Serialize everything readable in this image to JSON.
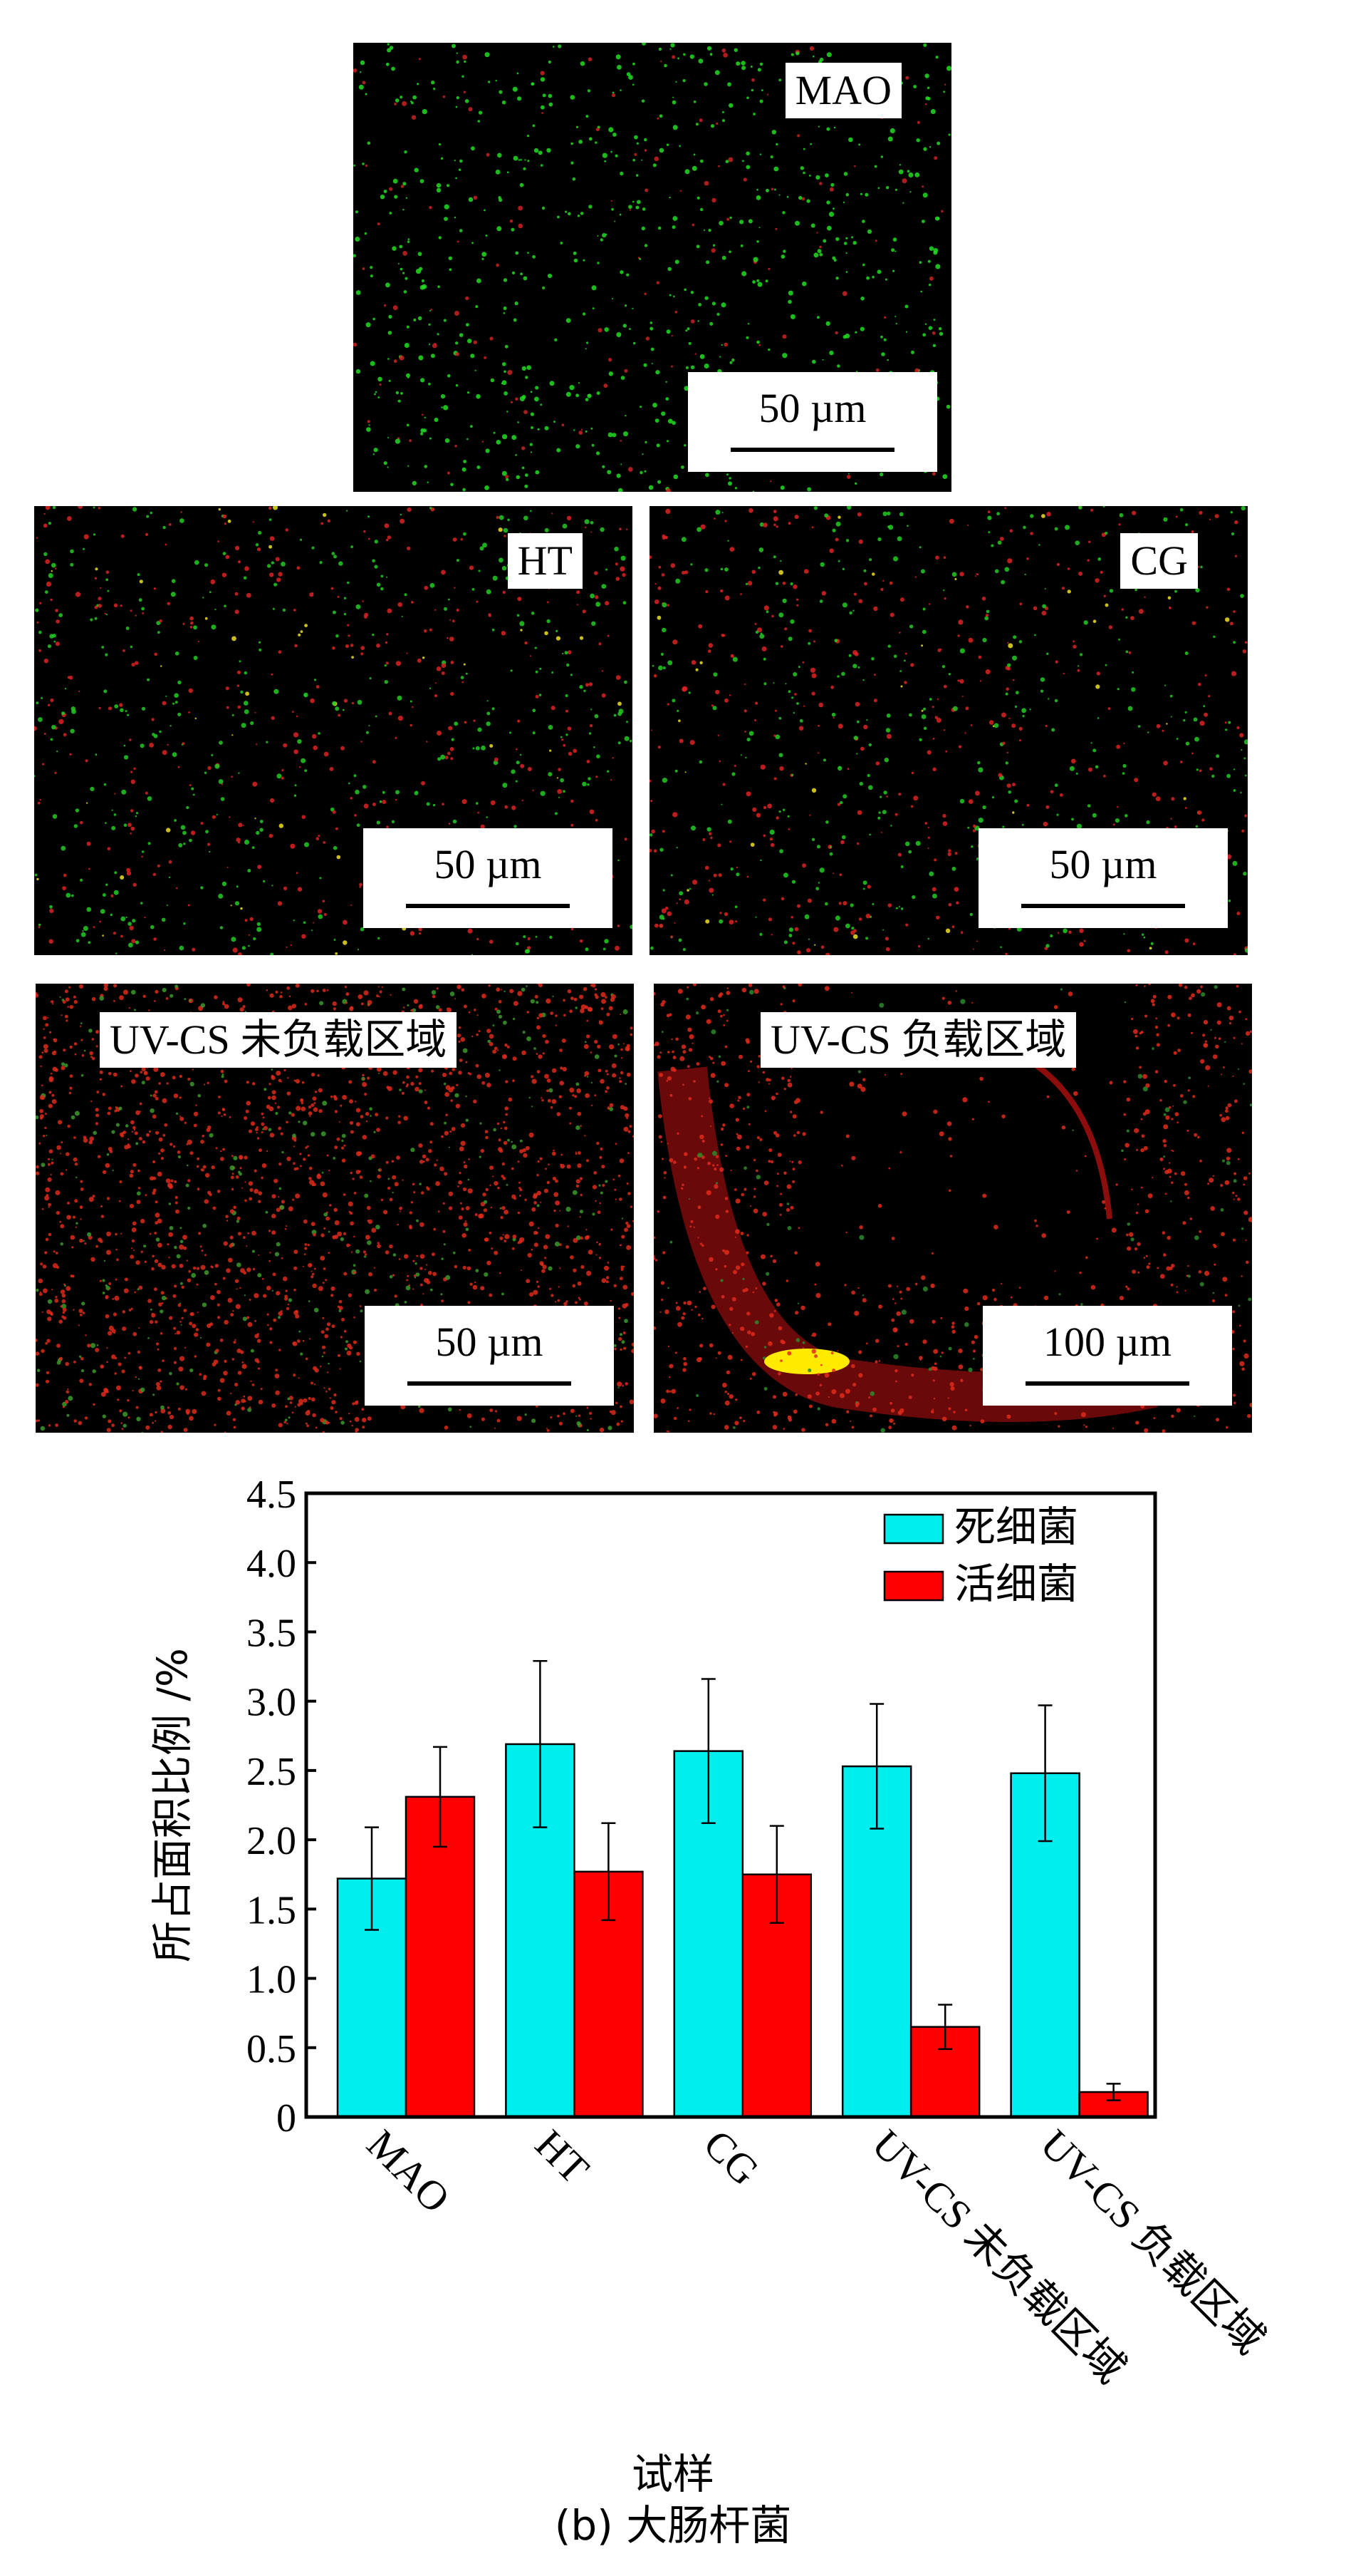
{
  "panels": {
    "mao": {
      "label": "MAO",
      "scale": "50 µm"
    },
    "ht": {
      "label": "HT",
      "scale": "50 µm"
    },
    "cg": {
      "label": "CG",
      "scale": "50 µm"
    },
    "unloaded": {
      "label": "UV-CS 未负载区域",
      "scale": "50 µm"
    },
    "loaded": {
      "label": "UV-CS 负载区域",
      "scale": "100 µm"
    }
  },
  "chart_data": {
    "type": "bar",
    "categories": [
      "MAO",
      "HT",
      "CG",
      "UV-CS 未负载区域",
      "UV-CS 负载区域"
    ],
    "series": [
      {
        "name": "死细菌",
        "color": "#00eeee",
        "values": [
          1.72,
          2.69,
          2.64,
          2.53,
          2.48
        ],
        "errors": [
          0.37,
          0.6,
          0.52,
          0.45,
          0.49
        ]
      },
      {
        "name": "活细菌",
        "color": "#ff0000",
        "values": [
          2.31,
          1.77,
          1.75,
          0.65,
          0.18
        ],
        "errors": [
          0.36,
          0.35,
          0.35,
          0.16,
          0.06
        ]
      }
    ],
    "ylabel": "所占面积比例 /%",
    "xlabel": "试样",
    "ylim": [
      0,
      4.5
    ],
    "yticks": [
      "0",
      "0.5",
      "1.0",
      "1.5",
      "2.0",
      "2.5",
      "3.0",
      "3.5",
      "4.0",
      "4.5"
    ],
    "legend": "top-right"
  },
  "caption": {
    "xlabel": "试样",
    "subtitle": "(b) 大肠杆菌"
  }
}
